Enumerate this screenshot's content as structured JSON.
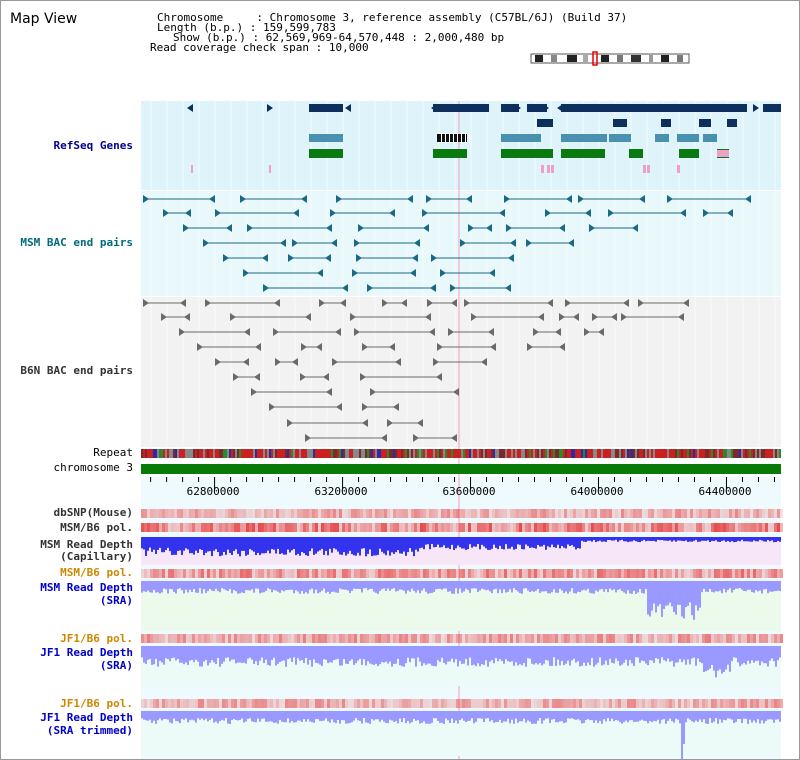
{
  "app_title": "Map View",
  "info": {
    "chromosome_label": "Chromosome",
    "chromosome_value": "Chromosome 3, reference assembly (C57BL/6J) (Build 37)",
    "length_label": "Length (b.p.)",
    "length_value": "159,599,783",
    "show_label": "Show (b.p.)",
    "show_value": "62,569,969-64,570,448 : 2,000,480 bp",
    "coverage_label": "Read coverage check span",
    "coverage_value": "10,000"
  },
  "tracks": {
    "refseq": "RefSeq Genes",
    "msm_bac": "MSM BAC end pairs",
    "b6n_bac": "B6N BAC end pairs",
    "repeat": "Repeat",
    "chromosome": "chromosome 3",
    "dbsnp": "dbSNP(Mouse)",
    "msm_b6_pol": "MSM/B6 pol.",
    "msm_read_depth_cap_1": "MSM Read Depth",
    "msm_read_depth_cap_2": "(Capillary)",
    "msm_b6_pol_2": "MSM/B6 pol.",
    "msm_read_depth_sra_1": "MSM Read Depth",
    "msm_read_depth_sra_2": "(SRA)",
    "jf1_b6_pol": "JF1/B6 pol.",
    "jf1_read_depth_sra_1": "JF1 Read Depth",
    "jf1_read_depth_sra_2": "(SRA)",
    "jf1_b6_pol_2": "JF1/B6 pol.",
    "jf1_read_depth_trim_1": "JF1 Read Depth",
    "jf1_read_depth_trim_2": "(SRA trimmed)"
  },
  "axis": {
    "start_bp": 62569969,
    "end_bp": 64570448,
    "ticks": [
      "62800000",
      "63200000",
      "63600000",
      "64000000",
      "64400000"
    ],
    "tick_values": [
      62800000,
      63200000,
      63600000,
      64000000,
      64400000
    ]
  },
  "colors": {
    "refseq_bg": "#dff3fb",
    "msm_bg": "#e8f8fb",
    "b6n_bg": "#f2f2f2",
    "gene_dark": "#0d2f5e",
    "gene_mid": "#4a90b0",
    "gene_green": "#0a7a10",
    "gene_pink": "#f0a0c8",
    "msm_bac": "#1a6a86",
    "b6n_bac": "#6a6a6a",
    "chromosome": "#087a08",
    "depth_blue": "#3333ee",
    "depth_light": "#9999ff",
    "pol_red": "#ee3333"
  }
}
